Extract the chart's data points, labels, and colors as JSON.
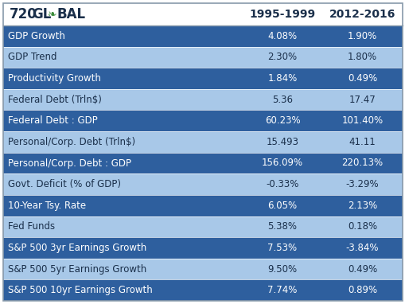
{
  "col1_header": "1995-1999",
  "col2_header": "2012-2016",
  "rows": [
    {
      "label": "GDP Growth",
      "v1": "4.08%",
      "v2": "1.90%",
      "dark": true
    },
    {
      "label": "GDP Trend",
      "v1": "2.30%",
      "v2": "1.80%",
      "dark": false
    },
    {
      "label": "Productivity Growth",
      "v1": "1.84%",
      "v2": "0.49%",
      "dark": true
    },
    {
      "label": "Federal Debt (Trln$)",
      "v1": "5.36",
      "v2": "17.47",
      "dark": false
    },
    {
      "label": "Federal Debt : GDP",
      "v1": "60.23%",
      "v2": "101.40%",
      "dark": true
    },
    {
      "label": "Personal/Corp. Debt (Trln$)",
      "v1": "15.493",
      "v2": "41.11",
      "dark": false
    },
    {
      "label": "Personal/Corp. Debt : GDP",
      "v1": "156.09%",
      "v2": "220.13%",
      "dark": true
    },
    {
      "label": "Govt. Deficit (% of GDP)",
      "v1": "-0.33%",
      "v2": "-3.29%",
      "dark": false
    },
    {
      "label": "10-Year Tsy. Rate",
      "v1": "6.05%",
      "v2": "2.13%",
      "dark": true
    },
    {
      "label": "Fed Funds",
      "v1": "5.38%",
      "v2": "0.18%",
      "dark": false
    },
    {
      "label": "S&P 500 3yr Earnings Growth",
      "v1": "7.53%",
      "v2": "-3.84%",
      "dark": true
    },
    {
      "label": "S&P 500 5yr Earnings Growth",
      "v1": "9.50%",
      "v2": "0.49%",
      "dark": false
    },
    {
      "label": "S&P 500 10yr Earnings Growth",
      "v1": "7.74%",
      "v2": "0.89%",
      "dark": true
    }
  ],
  "color_dark": "#2E5F9E",
  "color_light": "#A8C8E8",
  "color_header_bg": "#FFFFFF",
  "color_dark_text": "#FFFFFF",
  "color_light_text": "#1A2F4A",
  "color_header_text": "#1A2F4A",
  "color_border": "#8899AA",
  "fig_width": 5.1,
  "fig_height": 3.82,
  "dpi": 100
}
